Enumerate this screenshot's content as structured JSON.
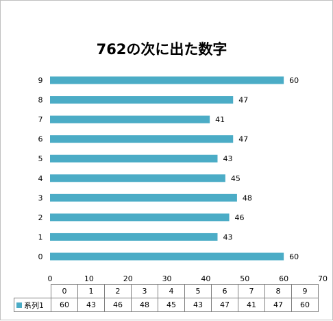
{
  "chart_data": {
    "type": "bar",
    "orientation": "horizontal",
    "title": "762の次に出た数字",
    "categories": [
      "0",
      "1",
      "2",
      "3",
      "4",
      "5",
      "6",
      "7",
      "8",
      "9"
    ],
    "series": [
      {
        "name": "系列1",
        "values": [
          60,
          43,
          46,
          48,
          45,
          43,
          47,
          41,
          47,
          60
        ],
        "color": "#4bacc6"
      }
    ],
    "xlim": [
      0,
      70
    ],
    "x_ticks": [
      0,
      10,
      20,
      30,
      40,
      50,
      60,
      70
    ],
    "grid": false,
    "data_labels": true,
    "data_table": true
  }
}
